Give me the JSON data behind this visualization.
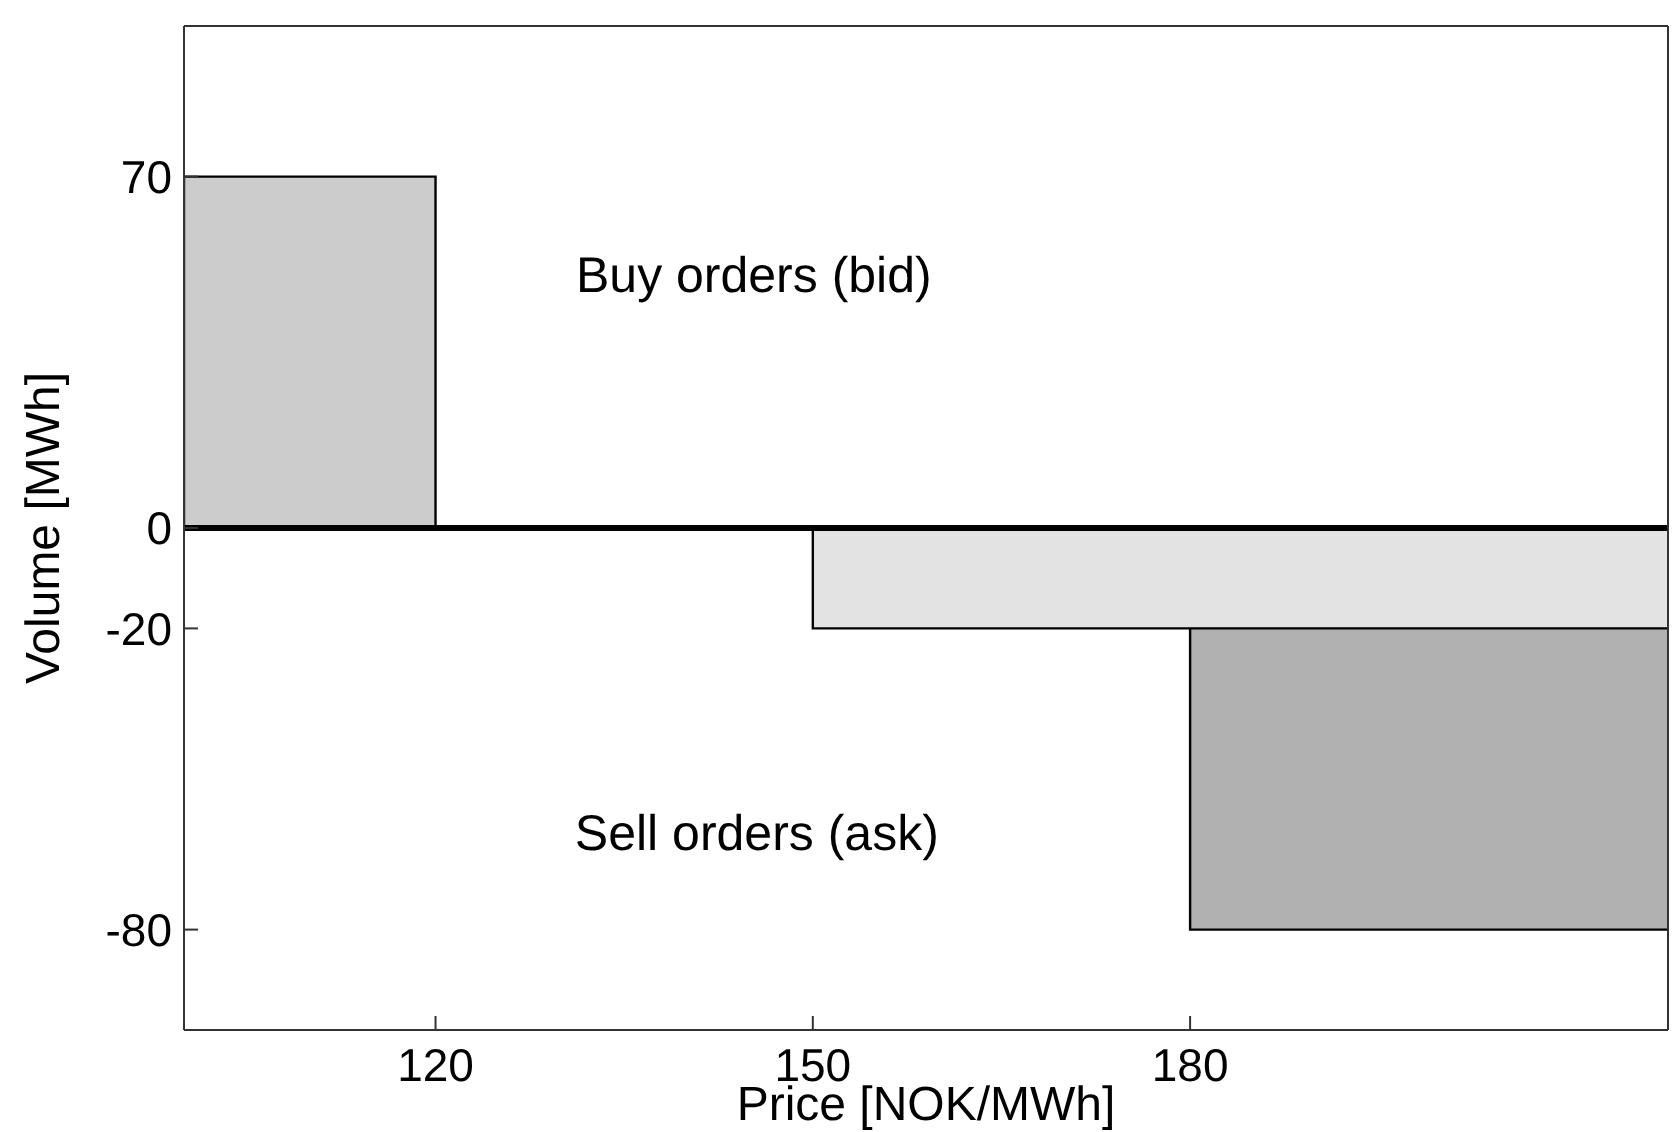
{
  "chart_data": {
    "type": "area",
    "xlabel": "Price [NOK/MWh]",
    "ylabel": "Volume [MWh]",
    "xlim": [
      100,
      218
    ],
    "xticks": [
      120,
      150,
      180
    ],
    "ylim": [
      -100,
      100
    ],
    "yticks": [
      -80,
      -20,
      0,
      70
    ],
    "series": [
      {
        "color": "#cccccc",
        "x": [
          100,
          100,
          120,
          120
        ],
        "values": [
          0,
          70,
          70,
          0
        ]
      },
      {
        "color": "#b1b1b1",
        "x": [
          180,
          180,
          218
        ],
        "values": [
          0,
          -80,
          -80
        ]
      },
      {
        "color": "#e3e3e3",
        "x": [
          150,
          150,
          218
        ],
        "values": [
          0,
          -20,
          -20
        ]
      }
    ],
    "ref_lines": [
      {
        "axis": "y",
        "value": 0,
        "color": "#000000"
      }
    ],
    "annotations": [
      "Buy orders (bid)",
      "Sell orders (ask)"
    ]
  }
}
